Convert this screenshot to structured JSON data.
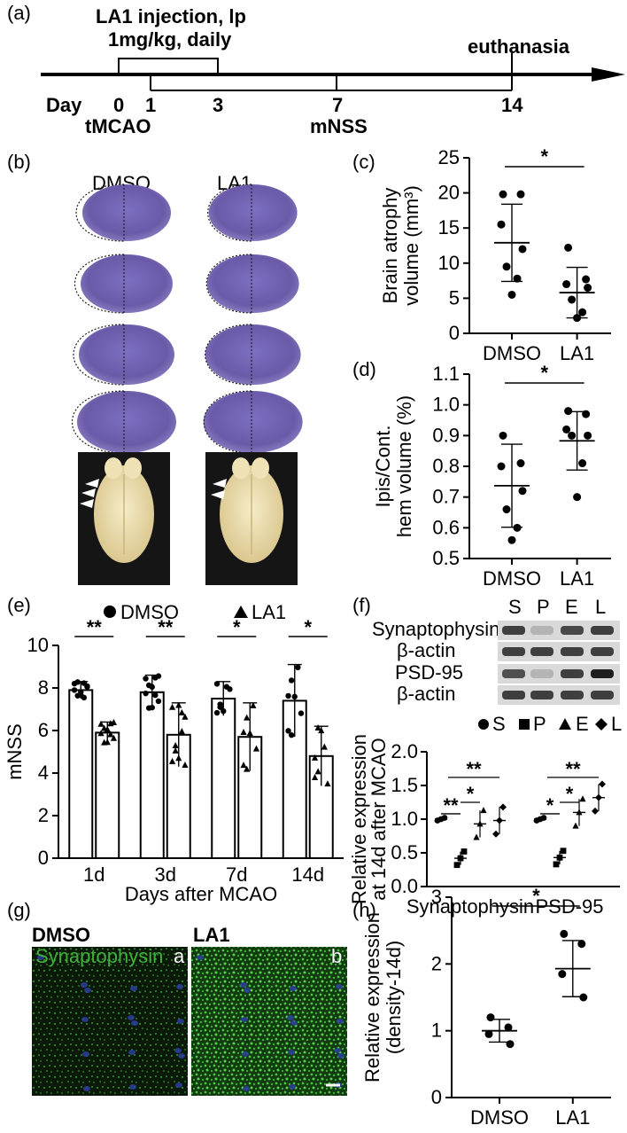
{
  "panels": {
    "a": {
      "letter": "(a)",
      "injection_line1": "LA1 injection, lp",
      "injection_line2": "1mg/kg, daily",
      "euthanasia": "euthanasia",
      "day_label": "Day",
      "days": [
        "0",
        "1",
        "3",
        "7",
        "14"
      ],
      "tmcao": "tMCAO",
      "mnss": "mNSS"
    },
    "b": {
      "letter": "(b)",
      "col1": "DMSO",
      "col2": "LA1"
    },
    "c": {
      "letter": "(c)"
    },
    "d": {
      "letter": "(d)"
    },
    "e": {
      "letter": "(e)",
      "legend1": "DMSO",
      "legend2": "LA1"
    },
    "f": {
      "letter": "(f)",
      "lanes": [
        "S",
        "P",
        "E",
        "L"
      ],
      "blot_rows": [
        "Synaptophysin",
        "β-actin",
        "PSD-95",
        "β-actin"
      ],
      "legend": [
        "S",
        "P",
        "E",
        "L"
      ]
    },
    "g": {
      "letter": "(g)",
      "col1": "DMSO",
      "col2": "LA1",
      "stain": "Synaptophysin",
      "sub_a": "a",
      "sub_b": "b"
    },
    "h": {
      "letter": "(h)"
    }
  },
  "colors": {
    "stain_green": "#3fae3a",
    "nuclei_blue": "#2b3fa0",
    "tissue_purple": "#6a5aa8"
  },
  "chart_data": [
    {
      "panel": "c",
      "type": "scatter",
      "categories": [
        "DMSO",
        "LA1"
      ],
      "ylabel": "Brain atrophy volume (mm³)",
      "ylim": [
        0,
        25
      ],
      "yticks": [
        "0",
        "5",
        "10",
        "15",
        "20",
        "25"
      ],
      "series": [
        {
          "values": [
            [
              19.8,
              19.8,
              15.5,
              12,
              9.5,
              7.8,
              5.5
            ],
            [
              12.2,
              7.7,
              7.0,
              6.5,
              4.8,
              3.0,
              2.2
            ]
          ]
        }
      ],
      "mean": [
        12.9,
        5.8
      ],
      "sd": [
        5.5,
        3.6
      ],
      "significance": "*"
    },
    {
      "panel": "d",
      "type": "scatter",
      "categories": [
        "DMSO",
        "LA1"
      ],
      "ylabel": "Ipis/Cont. hem volume (%)",
      "ylim": [
        0.5,
        1.1
      ],
      "yticks": [
        "0.5",
        "0.6",
        "0.7",
        "0.8",
        "0.9",
        "1.0",
        "1.1"
      ],
      "series": [
        {
          "values": [
            [
              0.9,
              0.81,
              0.8,
              0.72,
              0.66,
              0.6,
              0.56
            ],
            [
              0.98,
              0.97,
              0.92,
              0.9,
              0.9,
              0.81,
              0.7
            ]
          ]
        }
      ],
      "mean": [
        0.737,
        0.883
      ],
      "sd": [
        0.135,
        0.095
      ],
      "significance": "*"
    },
    {
      "panel": "e",
      "type": "bar",
      "categories": [
        "1d",
        "3d",
        "7d",
        "14d"
      ],
      "xlabel": "Days after MCAO",
      "ylabel": "mNSS",
      "ylim": [
        0,
        10
      ],
      "yticks": [
        "0",
        "2",
        "4",
        "6",
        "8",
        "10"
      ],
      "series": [
        {
          "name": "DMSO",
          "values": [
            7.9,
            7.8,
            7.5,
            7.4
          ],
          "sd": [
            0.4,
            0.8,
            0.8,
            1.7
          ]
        },
        {
          "name": "LA1",
          "values": [
            5.9,
            5.8,
            5.7,
            4.8
          ],
          "sd": [
            0.5,
            1.5,
            1.6,
            1.4
          ]
        }
      ],
      "significance": [
        "**",
        "**",
        "*",
        "*"
      ]
    },
    {
      "panel": "f",
      "type": "scatter",
      "categories": [
        "Synaptophysin",
        "PSD-95"
      ],
      "ylabel": "Relative expression at 14d after MCAO",
      "ylim": [
        0,
        2.0
      ],
      "yticks": [
        "0.0",
        "0.5",
        "1.0",
        "1.5",
        "2.0"
      ],
      "series": [
        {
          "name": "S",
          "values": [
            1.0,
            1.0
          ]
        },
        {
          "name": "P",
          "values": [
            0.42,
            0.43
          ]
        },
        {
          "name": "E",
          "values": [
            0.93,
            1.1
          ]
        },
        {
          "name": "L",
          "values": [
            0.98,
            1.32
          ]
        }
      ],
      "significance": [
        "**",
        "*",
        "**",
        "*",
        "*",
        "**"
      ]
    },
    {
      "panel": "h",
      "type": "scatter",
      "categories": [
        "DMSO",
        "LA1"
      ],
      "ylabel": "Relative expression (density-14d)",
      "ylim": [
        0,
        3
      ],
      "yticks": [
        "0",
        "1",
        "2",
        "3"
      ],
      "series": [
        {
          "values": [
            [
              1.2,
              1.05,
              0.95,
              0.8
            ],
            [
              2.45,
              2.3,
              1.85,
              1.5
            ]
          ]
        }
      ],
      "mean": [
        1.0,
        1.93
      ],
      "sd": [
        0.17,
        0.42
      ],
      "significance": "*"
    }
  ]
}
